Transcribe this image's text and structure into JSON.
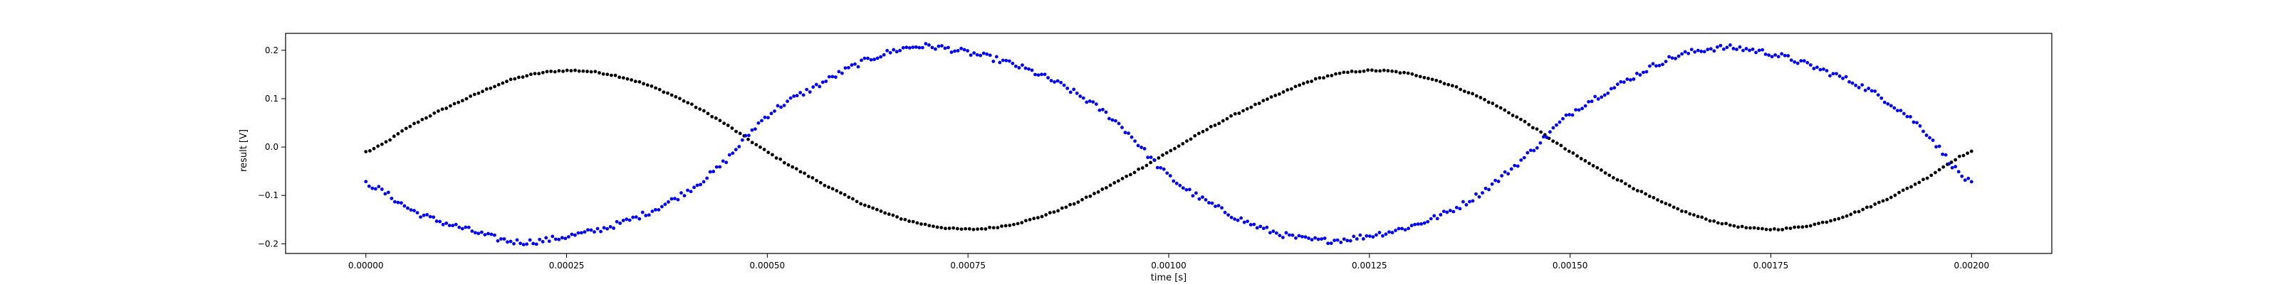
{
  "chart_data": {
    "type": "scatter",
    "title": "",
    "xlabel": "time [s]",
    "ylabel": "result [V]",
    "xlim": [
      -0.0001,
      0.0021
    ],
    "ylim": [
      -0.22,
      0.235
    ],
    "x_ticks": [
      0.0,
      0.00025,
      0.0005,
      0.00075,
      0.001,
      0.00125,
      0.0015,
      0.00175,
      0.002
    ],
    "x_tick_labels": [
      "0.00000",
      "0.00025",
      "0.00050",
      "0.00075",
      "0.00100",
      "0.00125",
      "0.00150",
      "0.00175",
      "0.00200"
    ],
    "y_ticks": [
      -0.2,
      -0.1,
      0.0,
      0.1,
      0.2
    ],
    "y_tick_labels": [
      "−0.2",
      "−0.1",
      "0.0",
      "0.1",
      "0.2"
    ],
    "grid": false,
    "legend": "none",
    "series": [
      {
        "color": "#000000",
        "marker": "dot",
        "points": 400,
        "x_range": [
          0.0,
          0.002
        ],
        "values": [
          [
            0.0,
            -0.01
          ],
          [
            6.25e-05,
            0.05
          ],
          [
            0.000125,
            0.1
          ],
          [
            0.0001875,
            0.142
          ],
          [
            0.00025,
            0.158
          ],
          [
            0.0003125,
            0.147
          ],
          [
            0.000375,
            0.112
          ],
          [
            0.0004375,
            0.058
          ],
          [
            0.0005,
            -0.01
          ],
          [
            0.0005625,
            -0.07
          ],
          [
            0.000625,
            -0.122
          ],
          [
            0.0006875,
            -0.157
          ],
          [
            0.00075,
            -0.17
          ],
          [
            0.0008125,
            -0.157
          ],
          [
            0.000875,
            -0.122
          ],
          [
            0.0009375,
            -0.07
          ],
          [
            0.001,
            -0.01
          ],
          [
            0.0010625,
            0.05
          ],
          [
            0.001125,
            0.1
          ],
          [
            0.0011875,
            0.142
          ],
          [
            0.00125,
            0.158
          ],
          [
            0.0013125,
            0.147
          ],
          [
            0.001375,
            0.112
          ],
          [
            0.0014375,
            0.058
          ],
          [
            0.0015,
            -0.01
          ],
          [
            0.0015625,
            -0.07
          ],
          [
            0.001625,
            -0.122
          ],
          [
            0.0016875,
            -0.157
          ],
          [
            0.00175,
            -0.17
          ],
          [
            0.0018125,
            -0.157
          ],
          [
            0.001875,
            -0.122
          ],
          [
            0.0019375,
            -0.07
          ],
          [
            0.002,
            -0.01
          ]
        ]
      },
      {
        "color": "#0000ff",
        "marker": "dot",
        "points": 500,
        "x_range": [
          0.0,
          0.002
        ],
        "values": [
          [
            0.0,
            -0.075
          ],
          [
            6.25e-05,
            -0.135
          ],
          [
            0.000125,
            -0.17
          ],
          [
            0.0001875,
            -0.196
          ],
          [
            0.00025,
            -0.185
          ],
          [
            0.0003125,
            -0.16
          ],
          [
            0.000375,
            -0.116
          ],
          [
            0.0004375,
            -0.045
          ],
          [
            0.0005,
            0.065
          ],
          [
            0.0005625,
            0.127
          ],
          [
            0.000625,
            0.18
          ],
          [
            0.0006875,
            0.208
          ],
          [
            0.00075,
            0.195
          ],
          [
            0.0008125,
            0.167
          ],
          [
            0.000875,
            0.12
          ],
          [
            0.0009375,
            0.048
          ],
          [
            0.001,
            -0.06
          ],
          [
            0.0010625,
            -0.127
          ],
          [
            0.001125,
            -0.173
          ],
          [
            0.0011875,
            -0.193
          ],
          [
            0.00125,
            -0.183
          ],
          [
            0.0013125,
            -0.158
          ],
          [
            0.001375,
            -0.11
          ],
          [
            0.0014375,
            -0.03
          ],
          [
            0.0015,
            0.068
          ],
          [
            0.0015625,
            0.13
          ],
          [
            0.001625,
            0.183
          ],
          [
            0.0016875,
            0.205
          ],
          [
            0.00175,
            0.193
          ],
          [
            0.0018125,
            0.16
          ],
          [
            0.001875,
            0.115
          ],
          [
            0.0019375,
            0.04
          ],
          [
            0.002,
            -0.075
          ]
        ]
      }
    ]
  }
}
